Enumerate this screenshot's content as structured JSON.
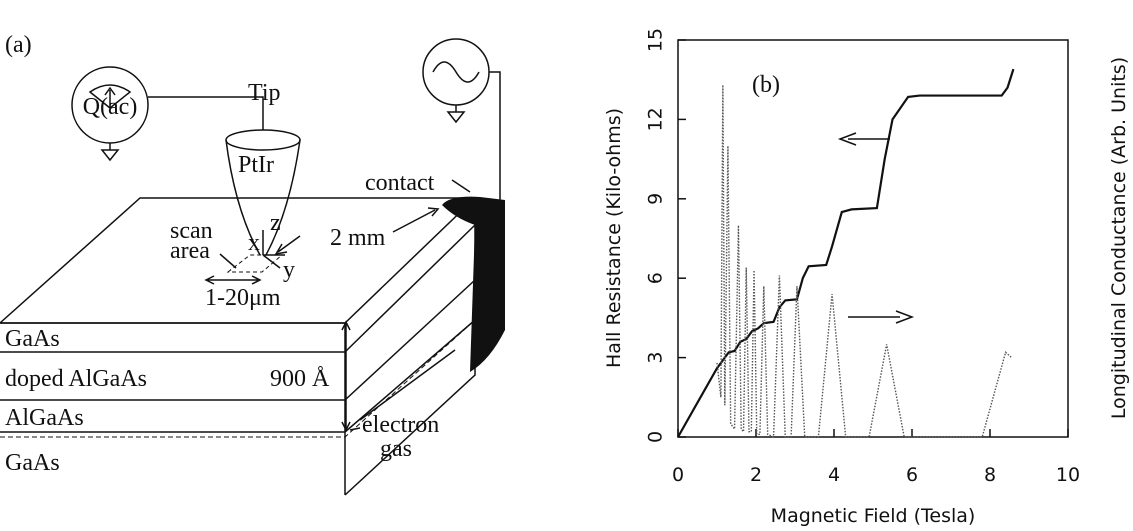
{
  "panel_a": {
    "label": "(a)",
    "source": "Q(ac)",
    "tip": "Tip",
    "tip_material": "PtIr",
    "contact": "contact",
    "scan_area": [
      "scan",
      "area"
    ],
    "axis_x": "x",
    "axis_z": "z",
    "axis_y": "y",
    "distance": "2 mm",
    "scan_size": "1-20μm",
    "layers": [
      "GaAs",
      "doped AlGaAs",
      "AlGaAs",
      "GaAs"
    ],
    "depth": "900 Å",
    "electron_gas": [
      "electron",
      "gas"
    ]
  },
  "chart_data": {
    "type": "line",
    "panel_label": "(b)",
    "x_label": "Magnetic Field (Tesla)",
    "y_label": "Hall Resistance (Kilo-ohms)",
    "y2_label": "Longitudinal Conductance (Arb. Units)",
    "xlim": [
      0,
      10
    ],
    "xticks": [
      0,
      2,
      4,
      6,
      8,
      10
    ],
    "ylim": [
      0,
      15
    ],
    "yticks": [
      0,
      3,
      6,
      9,
      12,
      15
    ],
    "y2lim": [
      0,
      15
    ],
    "series": [
      {
        "color": "#111111",
        "style": "solid",
        "x": [
          0,
          0.5,
          1.0,
          1.3,
          1.45,
          1.6,
          1.75,
          1.9,
          2.05,
          2.2,
          2.45,
          2.6,
          2.75,
          3.05,
          3.2,
          3.35,
          3.8,
          3.95,
          4.2,
          4.45,
          5.1,
          5.3,
          5.5,
          5.9,
          6.2,
          8.3,
          8.45,
          8.6
        ],
        "values": [
          0,
          1.3,
          2.6,
          3.2,
          3.25,
          3.6,
          3.7,
          4.0,
          4.1,
          4.3,
          4.35,
          4.9,
          5.16,
          5.2,
          6.0,
          6.45,
          6.5,
          7.2,
          8.5,
          8.6,
          8.65,
          10.5,
          12.0,
          12.85,
          12.9,
          12.9,
          13.2,
          13.9
        ]
      },
      {
        "color": "#555555",
        "style": "dotted",
        "axis": "y2",
        "x": [
          1.0,
          1.1,
          1.15,
          1.2,
          1.28,
          1.35,
          1.45,
          1.55,
          1.62,
          1.68,
          1.75,
          1.82,
          1.88,
          1.95,
          2.02,
          2.1,
          2.2,
          2.3,
          2.45,
          2.6,
          2.75,
          2.9,
          3.05,
          3.25,
          3.6,
          3.95,
          4.3,
          4.9,
          5.35,
          5.8,
          7.8,
          8.4,
          8.55
        ],
        "values": [
          2.8,
          1.5,
          13.3,
          1.2,
          11.0,
          0.5,
          0.3,
          8.0,
          0.3,
          0.2,
          6.4,
          0.2,
          0.2,
          6.3,
          0.1,
          0.1,
          5.7,
          0.1,
          0,
          6.1,
          0,
          0,
          5.7,
          0,
          0,
          5.4,
          0,
          0,
          3.5,
          0,
          0,
          3.2,
          3.0
        ]
      }
    ]
  }
}
